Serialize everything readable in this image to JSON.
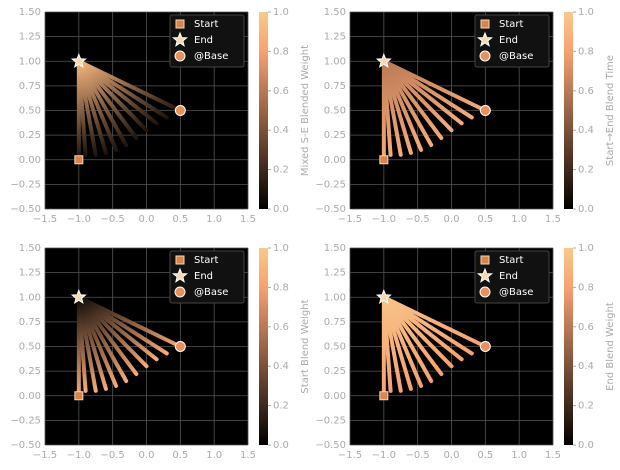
{
  "chart_data": [
    {
      "type": "fan",
      "colorbar_label": "Mixed S-E Blended Weight",
      "line_color_range": [
        0.1,
        0.9
      ],
      "xlim": [
        -1.5,
        1.5
      ],
      "ylim": [
        -0.5,
        1.5
      ],
      "clim": [
        0,
        1
      ],
      "xticks": [
        {
          "value": -1.5,
          "label": "−1.5"
        },
        {
          "value": -1,
          "label": "−1.0"
        },
        {
          "value": -0.5,
          "label": "−0.5"
        },
        {
          "value": 0,
          "label": "0.0"
        },
        0.5,
        {
          "value": 1,
          "label": "1.0"
        },
        1.5
      ],
      "yticks": [
        {
          "value": -0.5,
          "label": "−0.50"
        },
        {
          "value": -0.25,
          "label": "−0.25"
        },
        {
          "value": 0,
          "label": "0.00"
        },
        0.25,
        {
          "value": 0.5,
          "label": "0.50"
        },
        0.75,
        {
          "value": 1,
          "label": "1.00"
        },
        1.25,
        {
          "value": 1.5,
          "label": "1.50"
        }
      ],
      "cticks": [
        {
          "value": 0,
          "label": "0.0"
        },
        0.2,
        0.4,
        0.6,
        0.8,
        {
          "value": 1,
          "label": "1.0"
        }
      ],
      "fan": {
        "x": [
          -1,
          -0.9,
          -0.75,
          -0.6,
          -0.45,
          -0.3,
          -0.15,
          0,
          0.15,
          0.3,
          0.5
        ],
        "y": [
          0,
          0.05,
          0.05,
          0.07,
          0.1,
          0.15,
          0.22,
          0.3,
          0.37,
          0.43,
          0.5
        ]
      },
      "series": [
        {
          "name": "Start",
          "marker": "square",
          "color": "#d9834f",
          "x": [
            -1
          ],
          "values": [
            0
          ]
        },
        {
          "name": "End",
          "marker": "star",
          "color": "#f6d8b0",
          "x": [
            -1
          ],
          "values": [
            1
          ]
        },
        {
          "name": "@Base",
          "marker": "circle",
          "color": "#e8915b",
          "x": [
            0.5
          ],
          "values": [
            0.5
          ]
        }
      ]
    },
    {
      "type": "fan",
      "colorbar_label": "Start→End Blend Time",
      "line_color_range": [
        0.85,
        0.6
      ],
      "xlim": [
        -1.5,
        1.5
      ],
      "ylim": [
        -0.5,
        1.5
      ],
      "clim": [
        0,
        1
      ],
      "xticks": [
        {
          "value": -1.5,
          "label": "−1.5"
        },
        {
          "value": -1,
          "label": "−1.0"
        },
        {
          "value": -0.5,
          "label": "−0.5"
        },
        {
          "value": 0,
          "label": "0.0"
        },
        0.5,
        {
          "value": 1,
          "label": "1.0"
        },
        1.5
      ],
      "yticks": [
        {
          "value": -0.5,
          "label": "−0.50"
        },
        {
          "value": -0.25,
          "label": "−0.25"
        },
        {
          "value": 0,
          "label": "0.00"
        },
        0.25,
        {
          "value": 0.5,
          "label": "0.50"
        },
        0.75,
        {
          "value": 1,
          "label": "1.00"
        },
        1.25,
        {
          "value": 1.5,
          "label": "1.50"
        }
      ],
      "cticks": [
        {
          "value": 0,
          "label": "0.0"
        },
        0.2,
        0.4,
        0.6,
        0.8,
        {
          "value": 1,
          "label": "1.0"
        }
      ],
      "fan": {
        "x": [
          -1,
          -0.9,
          -0.75,
          -0.6,
          -0.45,
          -0.3,
          -0.15,
          0,
          0.15,
          0.3,
          0.5
        ],
        "y": [
          0,
          0.05,
          0.05,
          0.07,
          0.1,
          0.15,
          0.22,
          0.3,
          0.37,
          0.43,
          0.5
        ]
      },
      "series": [
        {
          "name": "Start",
          "marker": "square",
          "color": "#d9834f",
          "x": [
            -1
          ],
          "values": [
            0
          ]
        },
        {
          "name": "End",
          "marker": "star",
          "color": "#f6d8b0",
          "x": [
            -1
          ],
          "values": [
            1
          ]
        },
        {
          "name": "@Base",
          "marker": "circle",
          "color": "#e8915b",
          "x": [
            0.5
          ],
          "values": [
            0.5
          ]
        }
      ]
    },
    {
      "type": "fan",
      "colorbar_label": "Start Blend Weight",
      "line_color_range": [
        0.85,
        0.05
      ],
      "xlim": [
        -1.5,
        1.5
      ],
      "ylim": [
        -0.5,
        1.5
      ],
      "clim": [
        0,
        1
      ],
      "xticks": [
        {
          "value": -1.5,
          "label": "−1.5"
        },
        {
          "value": -1,
          "label": "−1.0"
        },
        {
          "value": -0.5,
          "label": "−0.5"
        },
        {
          "value": 0,
          "label": "0.0"
        },
        0.5,
        {
          "value": 1,
          "label": "1.0"
        },
        1.5
      ],
      "yticks": [
        {
          "value": -0.5,
          "label": "−0.50"
        },
        {
          "value": -0.25,
          "label": "−0.25"
        },
        {
          "value": 0,
          "label": "0.00"
        },
        0.25,
        {
          "value": 0.5,
          "label": "0.50"
        },
        0.75,
        {
          "value": 1,
          "label": "1.00"
        },
        1.25,
        {
          "value": 1.5,
          "label": "1.50"
        }
      ],
      "cticks": [
        {
          "value": 0,
          "label": "0.0"
        },
        0.2,
        0.4,
        0.6,
        0.8,
        {
          "value": 1,
          "label": "1.0"
        }
      ],
      "fan": {
        "x": [
          -1,
          -0.9,
          -0.75,
          -0.6,
          -0.45,
          -0.3,
          -0.15,
          0,
          0.15,
          0.3,
          0.5
        ],
        "y": [
          0,
          0.05,
          0.05,
          0.07,
          0.1,
          0.15,
          0.22,
          0.3,
          0.37,
          0.43,
          0.5
        ]
      },
      "series": [
        {
          "name": "Start",
          "marker": "square",
          "color": "#d9834f",
          "x": [
            -1
          ],
          "values": [
            0
          ]
        },
        {
          "name": "End",
          "marker": "star",
          "color": "#f6d8b0",
          "x": [
            -1
          ],
          "values": [
            1
          ]
        },
        {
          "name": "@Base",
          "marker": "circle",
          "color": "#e8915b",
          "x": [
            0.5
          ],
          "values": [
            0.5
          ]
        }
      ]
    },
    {
      "type": "fan",
      "colorbar_label": "End Blend Weight",
      "line_color_range": [
        0.8,
        0.97
      ],
      "xlim": [
        -1.5,
        1.5
      ],
      "ylim": [
        -0.5,
        1.5
      ],
      "clim": [
        0,
        1
      ],
      "xticks": [
        {
          "value": -1.5,
          "label": "−1.5"
        },
        {
          "value": -1,
          "label": "−1.0"
        },
        {
          "value": -0.5,
          "label": "−0.5"
        },
        {
          "value": 0,
          "label": "0.0"
        },
        0.5,
        {
          "value": 1,
          "label": "1.0"
        },
        1.5
      ],
      "yticks": [
        {
          "value": -0.5,
          "label": "−0.50"
        },
        {
          "value": -0.25,
          "label": "−0.25"
        },
        {
          "value": 0,
          "label": "0.00"
        },
        0.25,
        {
          "value": 0.5,
          "label": "0.50"
        },
        0.75,
        {
          "value": 1,
          "label": "1.00"
        },
        1.25,
        {
          "value": 1.5,
          "label": "1.50"
        }
      ],
      "cticks": [
        {
          "value": 0,
          "label": "0.0"
        },
        0.2,
        0.4,
        0.6,
        0.8,
        {
          "value": 1,
          "label": "1.0"
        }
      ],
      "fan": {
        "x": [
          -1,
          -0.9,
          -0.75,
          -0.6,
          -0.45,
          -0.3,
          -0.15,
          0,
          0.15,
          0.3,
          0.5
        ],
        "y": [
          0,
          0.05,
          0.05,
          0.07,
          0.1,
          0.15,
          0.22,
          0.3,
          0.37,
          0.43,
          0.5
        ]
      },
      "series": [
        {
          "name": "Start",
          "marker": "square",
          "color": "#d9834f",
          "x": [
            -1
          ],
          "values": [
            0
          ]
        },
        {
          "name": "End",
          "marker": "star",
          "color": "#f6d8b0",
          "x": [
            -1
          ],
          "values": [
            1
          ]
        },
        {
          "name": "@Base",
          "marker": "circle",
          "color": "#e8915b",
          "x": [
            0.5
          ],
          "values": [
            0.5
          ]
        }
      ]
    }
  ]
}
